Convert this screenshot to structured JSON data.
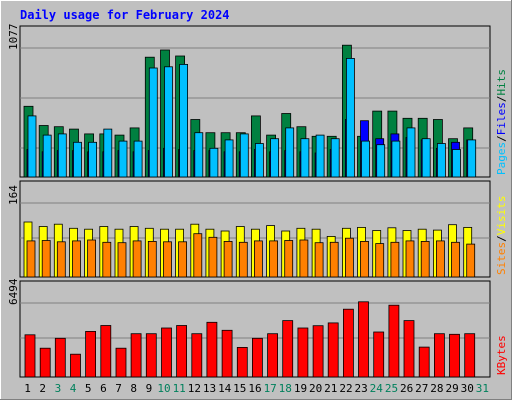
{
  "title": "Daily usage for February 2024",
  "colors": {
    "background": "#c0c0c0",
    "title": "#0000ff",
    "hits": "#008040",
    "files": "#0000ff",
    "pages": "#00c0ff",
    "visits": "#ffff00",
    "sites": "#ff8000",
    "kbytes": "#ff0000",
    "weekend": "#00805c"
  },
  "chart_data": [
    {
      "type": "bar",
      "panel": "hits-files-pages",
      "categories": [
        "1",
        "2",
        "3",
        "4",
        "5",
        "6",
        "7",
        "8",
        "9",
        "10",
        "11",
        "12",
        "13",
        "14",
        "15",
        "16",
        "17",
        "18",
        "19",
        "20",
        "21",
        "22",
        "23",
        "24",
        "25",
        "26",
        "27",
        "28",
        "29",
        "30",
        "31"
      ],
      "y_max_label": "1077",
      "ylim": [
        0,
        1077
      ],
      "grid": true,
      "right_label": {
        "parts": [
          "Pages",
          "/",
          "Files",
          "/",
          "Hits"
        ]
      },
      "series": [
        {
          "name": "Hits",
          "color": "#008040",
          "values": [
            590,
            430,
            420,
            400,
            360,
            360,
            350,
            410,
            1000,
            1060,
            1010,
            480,
            370,
            370,
            370,
            510,
            350,
            530,
            420,
            340,
            340,
            1100,
            340,
            550,
            550,
            490,
            490,
            480,
            320,
            410,
            0
          ]
        },
        {
          "name": "Files",
          "color": "#0000ff",
          "values": [
            230,
            210,
            220,
            220,
            210,
            210,
            220,
            210,
            220,
            240,
            230,
            220,
            220,
            210,
            210,
            230,
            210,
            220,
            210,
            200,
            230,
            480,
            470,
            320,
            360,
            330,
            310,
            240,
            290,
            310,
            0
          ]
        },
        {
          "name": "Pages",
          "color": "#00c0ff",
          "values": [
            510,
            350,
            360,
            290,
            290,
            400,
            300,
            300,
            910,
            920,
            940,
            370,
            240,
            310,
            360,
            280,
            320,
            410,
            320,
            350,
            320,
            990,
            300,
            270,
            300,
            410,
            320,
            280,
            230,
            310,
            0
          ]
        }
      ]
    },
    {
      "type": "bar",
      "panel": "visits-sites",
      "categories": [
        "1",
        "2",
        "3",
        "4",
        "5",
        "6",
        "7",
        "8",
        "9",
        "10",
        "11",
        "12",
        "13",
        "14",
        "15",
        "16",
        "17",
        "18",
        "19",
        "20",
        "21",
        "22",
        "23",
        "24",
        "25",
        "26",
        "27",
        "28",
        "29",
        "30",
        "31"
      ],
      "y_max_label": "164",
      "ylim": [
        0,
        164
      ],
      "grid": true,
      "right_label": {
        "parts": [
          "Sites",
          "/",
          "Visits"
        ]
      },
      "series": [
        {
          "name": "Visits",
          "color": "#ffff00",
          "values": [
            122,
            112,
            117,
            108,
            106,
            112,
            106,
            112,
            108,
            106,
            106,
            117,
            106,
            102,
            112,
            106,
            114,
            102,
            108,
            106,
            90,
            108,
            110,
            103,
            109,
            103,
            106,
            104,
            116,
            110,
            0
          ]
        },
        {
          "name": "Sites",
          "color": "#ff8000",
          "values": [
            80,
            81,
            78,
            80,
            82,
            77,
            76,
            80,
            79,
            78,
            78,
            96,
            88,
            79,
            77,
            80,
            80,
            81,
            82,
            76,
            77,
            86,
            79,
            74,
            77,
            80,
            79,
            80,
            77,
            73,
            0
          ]
        }
      ]
    },
    {
      "type": "bar",
      "panel": "kbytes",
      "categories": [
        "1",
        "2",
        "3",
        "4",
        "5",
        "6",
        "7",
        "8",
        "9",
        "10",
        "11",
        "12",
        "13",
        "14",
        "15",
        "16",
        "17",
        "18",
        "19",
        "20",
        "21",
        "22",
        "23",
        "24",
        "25",
        "26",
        "27",
        "28",
        "29",
        "30",
        "31"
      ],
      "y_max_label": "6494",
      "ylim": [
        0,
        6494
      ],
      "grid": true,
      "right_label": {
        "parts": [
          "KBytes"
        ]
      },
      "series": [
        {
          "name": "KBytes",
          "color": "#ff0000",
          "values": [
            3700,
            2530,
            3400,
            2000,
            4000,
            4520,
            2530,
            3800,
            3800,
            4300,
            4520,
            3800,
            4800,
            4100,
            2600,
            3400,
            3800,
            4950,
            4300,
            4500,
            4750,
            5950,
            6600,
            3950,
            6300,
            4950,
            2620,
            3800,
            3750,
            3800,
            0
          ]
        }
      ]
    }
  ],
  "x_labels": {
    "values": [
      "1",
      "2",
      "3",
      "4",
      "5",
      "6",
      "7",
      "8",
      "9",
      "10",
      "11",
      "12",
      "13",
      "14",
      "15",
      "16",
      "17",
      "18",
      "19",
      "20",
      "21",
      "22",
      "23",
      "24",
      "25",
      "26",
      "27",
      "28",
      "29",
      "30",
      "31"
    ],
    "weekend_days": [
      "3",
      "4",
      "10",
      "11",
      "17",
      "18",
      "24",
      "25",
      "31"
    ]
  }
}
